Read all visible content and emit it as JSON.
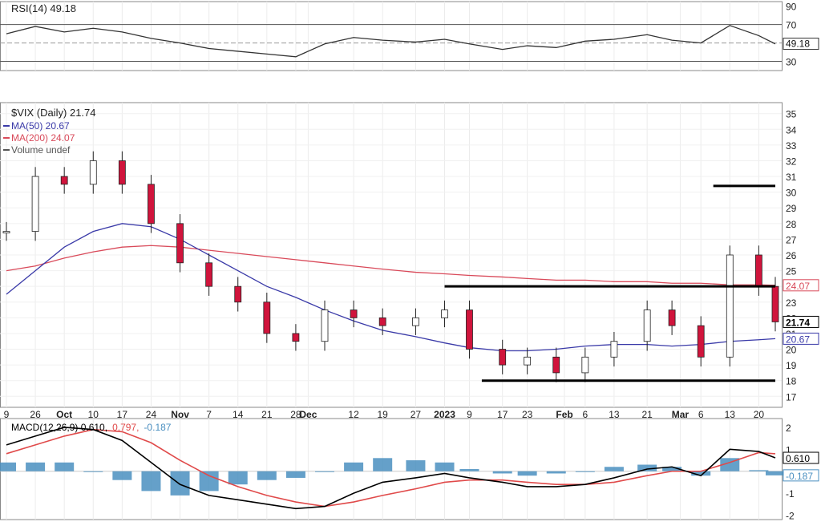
{
  "chart_data": [
    {
      "type": "line",
      "panel": "rsi",
      "title": "RSI(14) 49.18",
      "series": [
        {
          "name": "RSI(14)",
          "color": "#333333",
          "x": [
            "2022-09-19",
            "2022-09-26",
            "2022-10-03",
            "2022-10-10",
            "2022-10-17",
            "2022-10-24",
            "2022-10-31",
            "2022-11-07",
            "2022-11-14",
            "2022-11-21",
            "2022-11-28",
            "2022-12-05",
            "2022-12-12",
            "2022-12-19",
            "2022-12-27",
            "2023-01-03",
            "2023-01-09",
            "2023-01-17",
            "2023-01-23",
            "2023-01-30",
            "2023-02-06",
            "2023-02-13",
            "2023-02-21",
            "2023-02-27",
            "2023-03-06",
            "2023-03-13",
            "2023-03-20",
            "2023-03-24"
          ],
          "values": [
            60,
            68,
            62,
            66,
            62,
            55,
            50,
            44,
            41,
            38,
            35,
            49,
            56,
            53,
            51,
            54,
            49,
            43,
            47,
            45,
            52,
            54,
            59,
            53,
            50,
            69,
            58,
            49
          ]
        }
      ],
      "reference_lines": [
        70,
        30
      ],
      "midline": 50,
      "ylim": [
        20,
        95
      ],
      "yticks": [
        90,
        70,
        50,
        30
      ],
      "last_value_label": "49.18"
    },
    {
      "type": "candlestick",
      "panel": "price",
      "title": "$VIX (Daily) 21.74",
      "legend": [
        {
          "label": "MA(50) 20.67",
          "color": "#3a3aa8"
        },
        {
          "label": "MA(200) 24.07",
          "color": "#d94a5a"
        },
        {
          "label": "Volume undef",
          "color": "#555555"
        }
      ],
      "x": [
        "2022-09-19",
        "2022-09-26",
        "2022-10-03",
        "2022-10-10",
        "2022-10-17",
        "2022-10-24",
        "2022-10-31",
        "2022-11-07",
        "2022-11-14",
        "2022-11-21",
        "2022-11-28",
        "2022-12-05",
        "2022-12-12",
        "2022-12-19",
        "2022-12-27",
        "2023-01-03",
        "2023-01-09",
        "2023-01-17",
        "2023-01-23",
        "2023-01-30",
        "2023-02-06",
        "2023-02-13",
        "2023-02-21",
        "2023-02-27",
        "2023-03-06",
        "2023-03-13",
        "2023-03-20",
        "2023-03-24"
      ],
      "close": [
        27.5,
        31.0,
        30.5,
        32.0,
        30.5,
        28.0,
        25.5,
        24.0,
        23.0,
        21.0,
        20.5,
        22.5,
        22.0,
        21.5,
        22.0,
        22.5,
        20.0,
        19.0,
        19.5,
        18.5,
        19.5,
        20.5,
        22.5,
        21.5,
        19.5,
        26.0,
        24.0,
        21.74
      ],
      "ma50": [
        23.5,
        25.0,
        26.5,
        27.5,
        28.0,
        27.8,
        27.0,
        26.0,
        25.0,
        24.0,
        23.3,
        22.5,
        21.8,
        21.2,
        20.8,
        20.4,
        20.1,
        19.9,
        19.9,
        20.0,
        20.2,
        20.3,
        20.3,
        20.2,
        20.3,
        20.5,
        20.6,
        20.67
      ],
      "ma200": [
        25.0,
        25.3,
        25.8,
        26.2,
        26.5,
        26.6,
        26.5,
        26.3,
        26.1,
        25.9,
        25.7,
        25.5,
        25.3,
        25.1,
        24.9,
        24.8,
        24.7,
        24.6,
        24.5,
        24.4,
        24.4,
        24.3,
        24.3,
        24.2,
        24.2,
        24.1,
        24.1,
        24.07
      ],
      "ylim": [
        16.3,
        35.7
      ],
      "yticks": [
        17,
        18,
        19,
        20,
        21,
        22,
        23,
        24,
        25,
        26,
        27,
        28,
        29,
        30,
        31,
        32,
        33,
        34,
        35
      ],
      "support_resistance": [
        {
          "level": 30.4,
          "from": "2023-03-09",
          "to": "2023-03-24"
        },
        {
          "level": 24.0,
          "from": "2023-01-03",
          "to": "2023-03-24"
        },
        {
          "level": 18.0,
          "from": "2023-01-12",
          "to": "2023-03-24"
        }
      ],
      "right_labels": [
        {
          "text": "24.07",
          "value": 24.07,
          "color": "#d94a5a"
        },
        {
          "text": "21.74",
          "value": 21.74,
          "color": "#000000",
          "bold": true
        },
        {
          "text": "20.67",
          "value": 20.67,
          "color": "#3a3aa8"
        }
      ],
      "x_tick_labels": [
        {
          "label": "9",
          "date": "2022-09-19",
          "bold": false
        },
        {
          "label": "26",
          "date": "2022-09-26",
          "bold": false
        },
        {
          "label": "Oct",
          "date": "2022-10-03",
          "bold": true
        },
        {
          "label": "10",
          "date": "2022-10-10",
          "bold": false
        },
        {
          "label": "17",
          "date": "2022-10-17",
          "bold": false
        },
        {
          "label": "24",
          "date": "2022-10-24",
          "bold": false
        },
        {
          "label": "Nov",
          "date": "2022-10-31",
          "bold": true
        },
        {
          "label": "7",
          "date": "2022-11-07",
          "bold": false
        },
        {
          "label": "14",
          "date": "2022-11-14",
          "bold": false
        },
        {
          "label": "21",
          "date": "2022-11-21",
          "bold": false
        },
        {
          "label": "28",
          "date": "2022-11-28",
          "bold": false
        },
        {
          "label": "Dec",
          "date": "2022-12-01",
          "bold": true
        },
        {
          "label": "12",
          "date": "2022-12-12",
          "bold": false
        },
        {
          "label": "19",
          "date": "2022-12-19",
          "bold": false
        },
        {
          "label": "27",
          "date": "2022-12-27",
          "bold": false
        },
        {
          "label": "2023",
          "date": "2023-01-03",
          "bold": true
        },
        {
          "label": "9",
          "date": "2023-01-09",
          "bold": false
        },
        {
          "label": "17",
          "date": "2023-01-17",
          "bold": false
        },
        {
          "label": "23",
          "date": "2023-01-23",
          "bold": false
        },
        {
          "label": "Feb",
          "date": "2023-02-01",
          "bold": true
        },
        {
          "label": "6",
          "date": "2023-02-06",
          "bold": false
        },
        {
          "label": "13",
          "date": "2023-02-13",
          "bold": false
        },
        {
          "label": "21",
          "date": "2023-02-21",
          "bold": false
        },
        {
          "label": "Mar",
          "date": "2023-03-01",
          "bold": true
        },
        {
          "label": "6",
          "date": "2023-03-06",
          "bold": false
        },
        {
          "label": "13",
          "date": "2023-03-13",
          "bold": false
        },
        {
          "label": "20",
          "date": "2023-03-20",
          "bold": false
        }
      ]
    },
    {
      "type": "bar",
      "panel": "macd",
      "title": "MACD(12,26,9) 0.610, 0.797, -0.187",
      "legend": [
        {
          "label": "MACD(12,26,9) 0.610,",
          "color": "#000000"
        },
        {
          "label": "0.797,",
          "color": "#e04a4a"
        },
        {
          "label": "-0.187",
          "color": "#4a8fc0"
        }
      ],
      "x": [
        "2022-09-19",
        "2022-09-26",
        "2022-10-03",
        "2022-10-10",
        "2022-10-17",
        "2022-10-24",
        "2022-10-31",
        "2022-11-07",
        "2022-11-14",
        "2022-11-21",
        "2022-11-28",
        "2022-12-05",
        "2022-12-12",
        "2022-12-19",
        "2022-12-27",
        "2023-01-03",
        "2023-01-09",
        "2023-01-17",
        "2023-01-23",
        "2023-01-30",
        "2023-02-06",
        "2023-02-13",
        "2023-02-21",
        "2023-02-27",
        "2023-03-06",
        "2023-03-13",
        "2023-03-20",
        "2023-03-24"
      ],
      "series": [
        {
          "name": "MACD",
          "color": "#000000",
          "values": [
            1.2,
            1.6,
            2.0,
            1.9,
            1.4,
            0.4,
            -0.6,
            -1.1,
            -1.3,
            -1.5,
            -1.7,
            -1.6,
            -1.0,
            -0.5,
            -0.3,
            -0.1,
            -0.3,
            -0.5,
            -0.7,
            -0.7,
            -0.6,
            -0.3,
            0.1,
            0.2,
            -0.2,
            1.0,
            0.9,
            0.61
          ]
        },
        {
          "name": "Signal",
          "color": "#e04a4a",
          "values": [
            0.8,
            1.2,
            1.6,
            1.9,
            1.8,
            1.3,
            0.5,
            -0.2,
            -0.7,
            -1.1,
            -1.4,
            -1.6,
            -1.4,
            -1.1,
            -0.8,
            -0.5,
            -0.4,
            -0.4,
            -0.5,
            -0.6,
            -0.6,
            -0.5,
            -0.2,
            0.0,
            0.0,
            0.4,
            0.85,
            0.797
          ]
        },
        {
          "name": "Histogram",
          "color": "#4a8fc0",
          "values": [
            0.4,
            0.4,
            0.4,
            0.0,
            -0.4,
            -0.9,
            -1.1,
            -0.9,
            -0.6,
            -0.4,
            -0.3,
            0.0,
            0.4,
            0.6,
            0.5,
            0.4,
            0.1,
            -0.1,
            -0.2,
            -0.1,
            0.0,
            0.2,
            0.3,
            0.2,
            -0.2,
            0.6,
            0.05,
            -0.187
          ]
        }
      ],
      "ylim": [
        -2.2,
        2.4
      ],
      "yticks": [
        2,
        1,
        -1,
        -2
      ],
      "right_labels": [
        {
          "text": "0.610",
          "value": 0.61,
          "color": "#000000"
        },
        {
          "text": "-0.187",
          "value": -0.187,
          "color": "#4a8fc0"
        }
      ]
    }
  ]
}
